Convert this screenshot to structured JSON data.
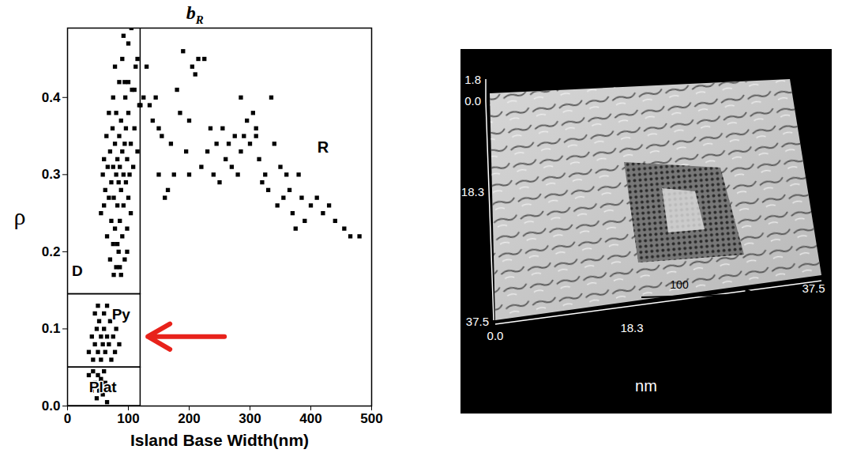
{
  "chart_data": {
    "type": "scatter",
    "title": "b",
    "title_subscript": "R",
    "xlabel": "Island Base Width(nm)",
    "ylabel": "ρ",
    "color": "#000000",
    "marker": "square",
    "xlim": [
      0,
      500
    ],
    "xticks": [
      0,
      100,
      200,
      300,
      400,
      500
    ],
    "ylim": [
      0,
      0.49
    ],
    "yticks": [
      {
        "value": 0,
        "label": "0.0"
      },
      {
        "value": 0.1,
        "label": "0.1"
      },
      {
        "value": 0.2,
        "label": "0.2"
      },
      {
        "value": 0.3,
        "label": "0.3"
      },
      {
        "value": 0.4,
        "label": "0.4"
      }
    ],
    "grid": false,
    "regions": [
      {
        "label": "D",
        "xlim": [
          0,
          120
        ],
        "ylim": [
          0.145,
          0.49
        ],
        "label_x": 16,
        "label_y": 0.175
      },
      {
        "label": "Py",
        "xlim": [
          0,
          120
        ],
        "ylim": [
          0.05,
          0.145
        ],
        "label_x": 88,
        "label_y": 0.118
      },
      {
        "label": "Plat",
        "xlim": [
          0,
          120
        ],
        "ylim": [
          0,
          0.05
        ],
        "label_x": 58,
        "label_y": 0.024
      }
    ],
    "annotations": [
      {
        "text": "R",
        "x": 420,
        "y": 0.335
      }
    ],
    "arrow": {
      "x1": 258,
      "x2": 132,
      "y": 0.09,
      "color": "#e8221b"
    },
    "points": [
      [
        130,
        0.44
      ],
      [
        135,
        0.39
      ],
      [
        140,
        0.37
      ],
      [
        145,
        0.4
      ],
      [
        150,
        0.3
      ],
      [
        155,
        0.35
      ],
      [
        160,
        0.27
      ],
      [
        165,
        0.28
      ],
      [
        170,
        0.34
      ],
      [
        175,
        0.3
      ],
      [
        180,
        0.41
      ],
      [
        185,
        0.38
      ],
      [
        190,
        0.46
      ],
      [
        195,
        0.33
      ],
      [
        200,
        0.37
      ],
      [
        205,
        0.44
      ],
      [
        210,
        0.43
      ],
      [
        215,
        0.45
      ],
      [
        220,
        0.31
      ],
      [
        225,
        0.45
      ],
      [
        230,
        0.33
      ],
      [
        235,
        0.36
      ],
      [
        240,
        0.3
      ],
      [
        245,
        0.34
      ],
      [
        250,
        0.29
      ],
      [
        255,
        0.36
      ],
      [
        260,
        0.32
      ],
      [
        265,
        0.34
      ],
      [
        270,
        0.31
      ],
      [
        275,
        0.35
      ],
      [
        280,
        0.3
      ],
      [
        285,
        0.33
      ],
      [
        290,
        0.35
      ],
      [
        295,
        0.37
      ],
      [
        300,
        0.34
      ],
      [
        305,
        0.38
      ],
      [
        310,
        0.36
      ],
      [
        315,
        0.32
      ],
      [
        320,
        0.29
      ],
      [
        325,
        0.3
      ],
      [
        330,
        0.28
      ],
      [
        335,
        0.4
      ],
      [
        340,
        0.34
      ],
      [
        345,
        0.26
      ],
      [
        350,
        0.31
      ],
      [
        355,
        0.27
      ],
      [
        360,
        0.3
      ],
      [
        365,
        0.28
      ],
      [
        370,
        0.25
      ],
      [
        375,
        0.23
      ],
      [
        380,
        0.3
      ],
      [
        385,
        0.27
      ],
      [
        390,
        0.24
      ],
      [
        400,
        0.26
      ],
      [
        410,
        0.27
      ],
      [
        420,
        0.25
      ],
      [
        430,
        0.26
      ],
      [
        440,
        0.24
      ],
      [
        455,
        0.23
      ],
      [
        465,
        0.22
      ],
      [
        480,
        0.22
      ],
      [
        100,
        0.42
      ],
      [
        110,
        0.41
      ],
      [
        115,
        0.45
      ],
      [
        120,
        0.39
      ],
      [
        125,
        0.4
      ],
      [
        285,
        0.4
      ],
      [
        310,
        0.35
      ],
      [
        200,
        0.3
      ],
      [
        150,
        0.36
      ],
      [
        55,
        0.25
      ],
      [
        58,
        0.3
      ],
      [
        60,
        0.32
      ],
      [
        62,
        0.28
      ],
      [
        64,
        0.35
      ],
      [
        65,
        0.22
      ],
      [
        66,
        0.31
      ],
      [
        68,
        0.27
      ],
      [
        70,
        0.33
      ],
      [
        70,
        0.19
      ],
      [
        72,
        0.29
      ],
      [
        72,
        0.24
      ],
      [
        74,
        0.36
      ],
      [
        75,
        0.31
      ],
      [
        75,
        0.21
      ],
      [
        76,
        0.27
      ],
      [
        78,
        0.34
      ],
      [
        78,
        0.23
      ],
      [
        80,
        0.3
      ],
      [
        80,
        0.38
      ],
      [
        80,
        0.18
      ],
      [
        82,
        0.26
      ],
      [
        82,
        0.32
      ],
      [
        84,
        0.29
      ],
      [
        84,
        0.2
      ],
      [
        85,
        0.35
      ],
      [
        85,
        0.42
      ],
      [
        86,
        0.24
      ],
      [
        86,
        0.31
      ],
      [
        88,
        0.28
      ],
      [
        88,
        0.37
      ],
      [
        88,
        0.17
      ],
      [
        90,
        0.33
      ],
      [
        90,
        0.22
      ],
      [
        90,
        0.45
      ],
      [
        92,
        0.3
      ],
      [
        92,
        0.26
      ],
      [
        94,
        0.34
      ],
      [
        94,
        0.19
      ],
      [
        95,
        0.4
      ],
      [
        96,
        0.29
      ],
      [
        96,
        0.36
      ],
      [
        98,
        0.32
      ],
      [
        98,
        0.23
      ],
      [
        100,
        0.38
      ],
      [
        100,
        0.27
      ],
      [
        100,
        0.47
      ],
      [
        102,
        0.3
      ],
      [
        104,
        0.34
      ],
      [
        104,
        0.25
      ],
      [
        106,
        0.41
      ],
      [
        108,
        0.31
      ],
      [
        110,
        0.36
      ],
      [
        112,
        0.44
      ],
      [
        115,
        0.33
      ],
      [
        118,
        0.39
      ],
      [
        75,
        0.4
      ],
      [
        68,
        0.38
      ],
      [
        92,
        0.48
      ],
      [
        105,
        0.49
      ],
      [
        60,
        0.26
      ],
      [
        78,
        0.44
      ],
      [
        82,
        0.21
      ],
      [
        86,
        0.18
      ],
      [
        94,
        0.42
      ],
      [
        98,
        0.2
      ],
      [
        76,
        0.17
      ],
      [
        35,
        0.07
      ],
      [
        40,
        0.09
      ],
      [
        42,
        0.06
      ],
      [
        45,
        0.08
      ],
      [
        48,
        0.1
      ],
      [
        50,
        0.07
      ],
      [
        52,
        0.11
      ],
      [
        55,
        0.09
      ],
      [
        55,
        0.06
      ],
      [
        58,
        0.08
      ],
      [
        60,
        0.12
      ],
      [
        60,
        0.1
      ],
      [
        62,
        0.07
      ],
      [
        65,
        0.09
      ],
      [
        65,
        0.13
      ],
      [
        68,
        0.08
      ],
      [
        70,
        0.11
      ],
      [
        72,
        0.06
      ],
      [
        75,
        0.09
      ],
      [
        78,
        0.07
      ],
      [
        80,
        0.1
      ],
      [
        85,
        0.08
      ],
      [
        45,
        0.12
      ],
      [
        50,
        0.13
      ],
      [
        35,
        0.04
      ],
      [
        40,
        0.02
      ],
      [
        42,
        0.045
      ],
      [
        45,
        0.03
      ],
      [
        48,
        0.01
      ],
      [
        50,
        0.04
      ],
      [
        52,
        0.02
      ],
      [
        55,
        0.035
      ],
      [
        58,
        0.015
      ],
      [
        60,
        0.045
      ],
      [
        62,
        0.03
      ],
      [
        65,
        0.005
      ]
    ]
  },
  "stm_image": {
    "z_ticks": [
      {
        "value": 1.8,
        "label": "1.8"
      },
      {
        "value": 0,
        "label": "0.0"
      }
    ],
    "y_ticks": [
      {
        "value": 18.3,
        "label": "18.3"
      },
      {
        "value": 37.5,
        "label": "37.5"
      }
    ],
    "x_ticks": [
      {
        "value": 0,
        "label": "0.0"
      },
      {
        "value": 18.3,
        "label": "18.3"
      },
      {
        "value": 37.5,
        "label": "37.5"
      }
    ],
    "x_label": "nm",
    "direction_label": "100"
  }
}
